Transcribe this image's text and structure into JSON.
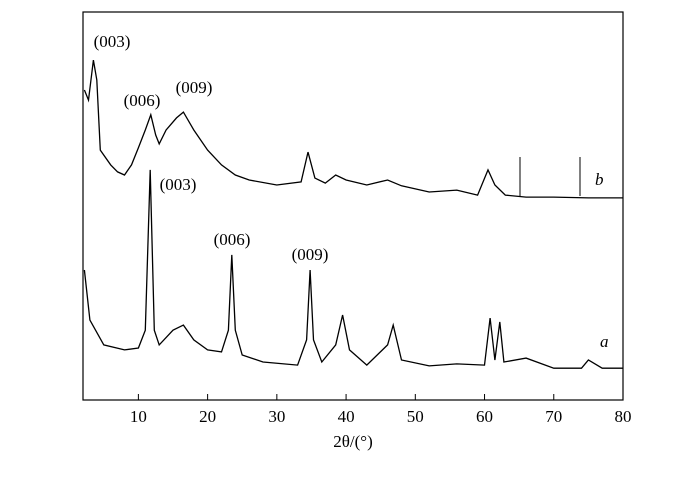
{
  "chart_data": {
    "type": "line",
    "xlabel": "2θ/(°)",
    "xlim": [
      2,
      80
    ],
    "xticks": [
      10,
      20,
      30,
      40,
      50,
      60,
      70,
      80
    ],
    "ylim": [
      0,
      100
    ],
    "series": [
      {
        "name": "a",
        "color": "#000000",
        "x": [
          2.2,
          3,
          5,
          8,
          10,
          11,
          11.7,
          12.3,
          13,
          15,
          16.5,
          18,
          20,
          22,
          23,
          23.5,
          24,
          25,
          28,
          33,
          34.3,
          34.8,
          35.3,
          36.5,
          38.5,
          39.5,
          40.5,
          43,
          46,
          46.8,
          48,
          52,
          56,
          60,
          60.8,
          61.5,
          62.2,
          62.8,
          66,
          70,
          74,
          75,
          77,
          80
        ],
        "values": [
          33.5,
          20.6,
          14.2,
          12.9,
          13.4,
          18.0,
          59.3,
          18.0,
          14.2,
          18.0,
          19.3,
          15.5,
          12.9,
          12.4,
          18.0,
          37.4,
          18.0,
          11.6,
          9.8,
          9.0,
          15.5,
          33.5,
          15.5,
          9.8,
          14.2,
          21.9,
          12.9,
          9.0,
          14.2,
          19.3,
          10.3,
          8.8,
          9.3,
          9.0,
          21.1,
          10.3,
          20.1,
          9.8,
          10.8,
          8.2,
          8.2,
          10.3,
          8.2,
          8.2
        ]
      },
      {
        "name": "b",
        "color": "#000000",
        "x": [
          2.2,
          2.8,
          3.5,
          4,
          4.5,
          6,
          7,
          8,
          9,
          10,
          11,
          11.8,
          12.5,
          13,
          14,
          15.5,
          16.5,
          18,
          20,
          22,
          24,
          26,
          30,
          33.5,
          34.5,
          35.5,
          37,
          38.5,
          40,
          43,
          46,
          48,
          52,
          56,
          59,
          60.5,
          61.5,
          63,
          66,
          70,
          75,
          80
        ],
        "values": [
          79.9,
          77.3,
          87.6,
          82.5,
          64.4,
          60.6,
          58.8,
          58.0,
          60.6,
          65.0,
          69.6,
          73.5,
          68.3,
          66.0,
          69.6,
          72.7,
          74.2,
          69.6,
          64.4,
          60.6,
          58.0,
          56.7,
          55.4,
          56.2,
          63.9,
          57.2,
          55.9,
          58.0,
          56.7,
          55.4,
          56.7,
          55.2,
          53.6,
          54.1,
          52.8,
          59.3,
          55.4,
          52.8,
          52.3,
          52.3,
          52.1,
          52.1
        ]
      }
    ],
    "annotations": [
      "(003)",
      "(006)",
      "(009)",
      "(003)",
      "(006)",
      "(009)"
    ]
  }
}
